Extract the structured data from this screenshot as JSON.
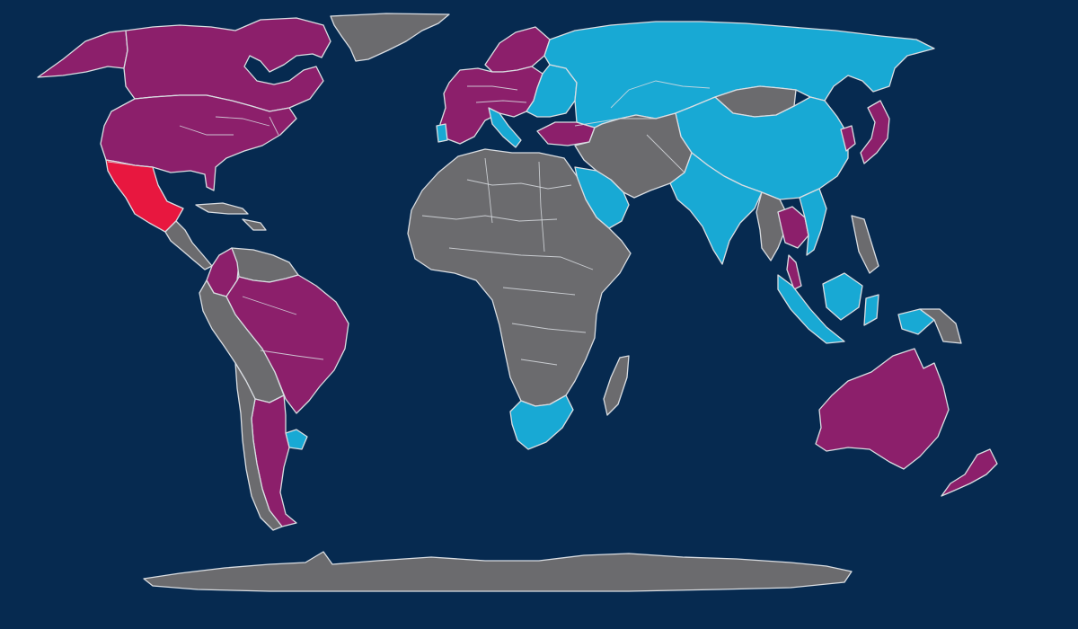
{
  "map": {
    "background_color": "#062a50",
    "border_color": "#d9dde2",
    "legend_shown": false,
    "categories": [
      {
        "key": "magenta",
        "color": "#8c1f6b"
      },
      {
        "key": "cyan",
        "color": "#18a9d4"
      },
      {
        "key": "red",
        "color": "#e8173f"
      },
      {
        "key": "gray",
        "color": "#6b6b6e"
      }
    ],
    "regions": [
      {
        "id": "greenland",
        "category": "gray"
      },
      {
        "id": "canada",
        "category": "magenta"
      },
      {
        "id": "usa",
        "category": "magenta"
      },
      {
        "id": "alaska",
        "category": "magenta"
      },
      {
        "id": "mexico",
        "category": "red"
      },
      {
        "id": "central-america",
        "category": "gray"
      },
      {
        "id": "caribbean",
        "category": "gray"
      },
      {
        "id": "colombia",
        "category": "magenta"
      },
      {
        "id": "venezuela-guianas",
        "category": "gray"
      },
      {
        "id": "brazil",
        "category": "magenta"
      },
      {
        "id": "peru-bolivia-paraguay",
        "category": "gray"
      },
      {
        "id": "argentina",
        "category": "magenta"
      },
      {
        "id": "chile",
        "category": "gray"
      },
      {
        "id": "uruguay",
        "category": "cyan"
      },
      {
        "id": "europe",
        "category": "magenta"
      },
      {
        "id": "scandinavia",
        "category": "magenta"
      },
      {
        "id": "eastern-europe",
        "category": "cyan"
      },
      {
        "id": "italy",
        "category": "cyan"
      },
      {
        "id": "portugal",
        "category": "cyan"
      },
      {
        "id": "turkey",
        "category": "magenta"
      },
      {
        "id": "russia-central-asia",
        "category": "cyan"
      },
      {
        "id": "china",
        "category": "cyan"
      },
      {
        "id": "mongolia",
        "category": "gray"
      },
      {
        "id": "middle-east",
        "category": "gray"
      },
      {
        "id": "saudi-arabia",
        "category": "cyan"
      },
      {
        "id": "india",
        "category": "cyan"
      },
      {
        "id": "southeast-asia-west",
        "category": "gray"
      },
      {
        "id": "thailand-cambodia",
        "category": "magenta"
      },
      {
        "id": "vietnam",
        "category": "cyan"
      },
      {
        "id": "japan",
        "category": "magenta"
      },
      {
        "id": "korea",
        "category": "magenta"
      },
      {
        "id": "philippines",
        "category": "gray"
      },
      {
        "id": "indonesia",
        "category": "cyan"
      },
      {
        "id": "new-guinea",
        "category": "gray"
      },
      {
        "id": "africa",
        "category": "gray"
      },
      {
        "id": "south-africa",
        "category": "cyan"
      },
      {
        "id": "madagascar",
        "category": "gray"
      },
      {
        "id": "australia",
        "category": "magenta"
      },
      {
        "id": "new-zealand",
        "category": "magenta"
      },
      {
        "id": "antarctica",
        "category": "gray"
      }
    ]
  }
}
